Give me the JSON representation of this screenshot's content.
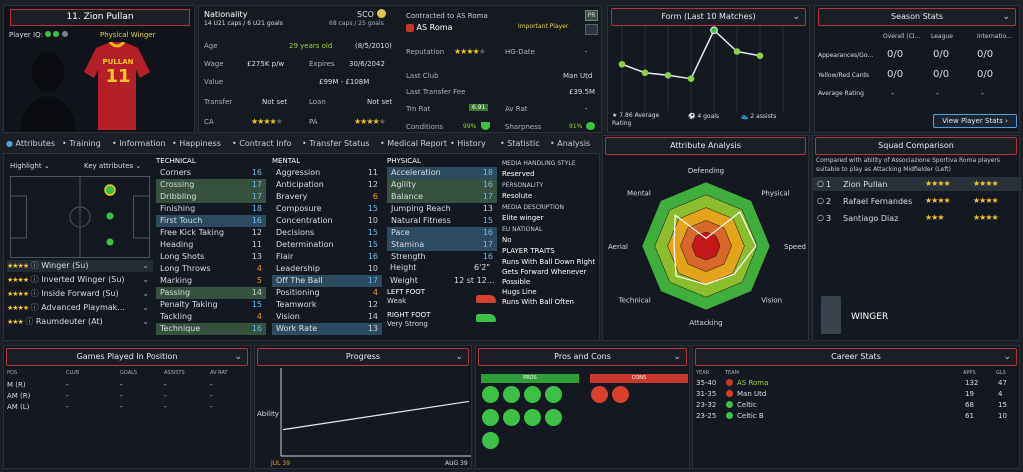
{
  "header": {
    "player_name": "11. Zion Pullan",
    "player_iq_label": "Player IQ:",
    "role": "Physical Winger",
    "shirt_name": "PULLAN",
    "shirt_number": "11"
  },
  "info": {
    "nationality_label": "Nationality",
    "nationality_code": "SCO",
    "u21": "14 U21 caps / 6 U21 goals",
    "caps": "68 caps / 25 goals",
    "contract_label": "Contracted to AS Roma",
    "club": "AS Roma",
    "status": "Important Player",
    "pr_badge": "PR",
    "age_label": "Age",
    "age_value": "29 years old",
    "dob": "(8/5/2010)",
    "wage_label": "Wage",
    "wage_value": "£275K p/w",
    "expires_label": "Expires",
    "expires_value": "30/6/2042",
    "value_label": "Value",
    "value_value": "£99M - £108M",
    "transfer_label": "Transfer",
    "transfer_value": "Not set",
    "loan_label": "Loan",
    "loan_value": "Not set",
    "ca_label": "CA",
    "pa_label": "PA",
    "reputation_label": "Reputation",
    "hg_label": "HG-Date",
    "hg_value": "-",
    "last_club_label": "Last Club",
    "last_club_value": "Man Utd",
    "last_fee_label": "Last Transfer Fee",
    "last_fee_value": "£39.5M",
    "trn_rat_label": "Trn Rat",
    "trn_rat_value": "6.91",
    "av_rat_label": "Av Rat",
    "av_rat_value": "-",
    "conditions_label": "Conditions",
    "conditions_value": "99%",
    "sharpness_label": "Sharpness",
    "sharpness_value": "91%"
  },
  "form": {
    "title": "Form (Last 10 Matches)",
    "avg": "7.86 Average Rating",
    "goals": "4 goals",
    "assists": "2 assists",
    "points": [
      0.55,
      0.45,
      0.42,
      0.38,
      0.95,
      0.7,
      0.65
    ]
  },
  "season": {
    "title": "Season Stats",
    "cols": [
      "Overall (Cl...",
      "League",
      "Internatio..."
    ],
    "rows": [
      {
        "label": "Appearances/Go...",
        "values": [
          "0/0",
          "0/0",
          "0/0"
        ]
      },
      {
        "label": "Yellow/Red Cards",
        "values": [
          "0/0",
          "0/0",
          "0/0"
        ]
      },
      {
        "label": "Average Rating",
        "values": [
          "-",
          "-",
          "-"
        ]
      }
    ],
    "button": "View Player Stats"
  },
  "tabs": [
    "Attributes",
    "Training",
    "Information",
    "Happiness",
    "Contract Info",
    "Transfer Status",
    "Medical Report",
    "History",
    "Statistic",
    "Analysis"
  ],
  "pitch": {
    "highlight": "Highlight",
    "key_attributes": "Key attributes",
    "roles": [
      {
        "name": "Winger (Su)",
        "stars": 4
      },
      {
        "name": "Inverted Winger (Su)",
        "stars": 4
      },
      {
        "name": "Inside Forward (Su)",
        "stars": 4
      },
      {
        "name": "Advanced Playmak...",
        "stars": 4
      },
      {
        "name": "Raumdeuter (At)",
        "stars": 3
      }
    ]
  },
  "technical": {
    "title": "TECHNICAL",
    "items": [
      {
        "n": "Corners",
        "v": "16",
        "h": ""
      },
      {
        "n": "Crossing",
        "v": "17",
        "h": "g"
      },
      {
        "n": "Dribbling",
        "v": "17",
        "h": "g"
      },
      {
        "n": "Finishing",
        "v": "18",
        "h": ""
      },
      {
        "n": "First Touch",
        "v": "16",
        "h": "b"
      },
      {
        "n": "Free Kick Taking",
        "v": "12",
        "h": ""
      },
      {
        "n": "Heading",
        "v": "11",
        "h": ""
      },
      {
        "n": "Long Shots",
        "v": "13",
        "h": ""
      },
      {
        "n": "Long Throws",
        "v": "4",
        "h": ""
      },
      {
        "n": "Marking",
        "v": "5",
        "h": ""
      },
      {
        "n": "Passing",
        "v": "14",
        "h": "g"
      },
      {
        "n": "Penalty Taking",
        "v": "15",
        "h": ""
      },
      {
        "n": "Tackling",
        "v": "4",
        "h": ""
      },
      {
        "n": "Technique",
        "v": "16",
        "h": "g"
      }
    ]
  },
  "mental": {
    "title": "MENTAL",
    "items": [
      {
        "n": "Aggression",
        "v": "11",
        "h": ""
      },
      {
        "n": "Anticipation",
        "v": "12",
        "h": ""
      },
      {
        "n": "Bravery",
        "v": "6",
        "h": ""
      },
      {
        "n": "Composure",
        "v": "15",
        "h": ""
      },
      {
        "n": "Concentration",
        "v": "10",
        "h": ""
      },
      {
        "n": "Decisions",
        "v": "15",
        "h": ""
      },
      {
        "n": "Determination",
        "v": "15",
        "h": ""
      },
      {
        "n": "Flair",
        "v": "16",
        "h": ""
      },
      {
        "n": "Leadership",
        "v": "10",
        "h": ""
      },
      {
        "n": "Off The Ball",
        "v": "17",
        "h": "b"
      },
      {
        "n": "Positioning",
        "v": "4",
        "h": ""
      },
      {
        "n": "Teamwork",
        "v": "12",
        "h": ""
      },
      {
        "n": "Vision",
        "v": "14",
        "h": ""
      },
      {
        "n": "Work Rate",
        "v": "13",
        "h": "b"
      }
    ]
  },
  "physical": {
    "title": "PHYSICAL",
    "items": [
      {
        "n": "Acceleration",
        "v": "18",
        "h": "b"
      },
      {
        "n": "Agility",
        "v": "16",
        "h": "g"
      },
      {
        "n": "Balance",
        "v": "17",
        "h": "g"
      },
      {
        "n": "Jumping Reach",
        "v": "13",
        "h": ""
      },
      {
        "n": "Natural Fitness",
        "v": "15",
        "h": ""
      },
      {
        "n": "Pace",
        "v": "16",
        "h": "b"
      },
      {
        "n": "Stamina",
        "v": "17",
        "h": "b"
      },
      {
        "n": "Strength",
        "v": "16",
        "h": ""
      }
    ],
    "height_label": "Height",
    "height_value": "6'2\"",
    "weight_label": "Weight",
    "weight_value": "12 st 12...",
    "left_foot_label": "LEFT FOOT",
    "left_foot_value": "Weak",
    "right_foot_label": "RIGHT FOOT",
    "right_foot_value": "Very Strong"
  },
  "media": {
    "title": "MEDIA HANDLING STYLE",
    "style": "Reserved",
    "personality_label": "PERSONALITY",
    "personality": "Resolute",
    "description_label": "MEDIA DESCRIPTION",
    "description": "Elite winger",
    "eu_label": "EU NATIONAL",
    "eu": "No",
    "traits_label": "PLAYER TRAITS",
    "traits": [
      "Runs With Ball Down Right",
      "Gets Forward Whenever Possible",
      "Hugs Line",
      "Runs With Ball Often"
    ]
  },
  "analysis": {
    "title": "Attribute Analysis",
    "axes": [
      "Defending",
      "Physical",
      "Speed",
      "Vision",
      "Attacking",
      "Technical",
      "Aerial",
      "Mental"
    ],
    "values": [
      0.12,
      0.75,
      0.78,
      0.62,
      0.6,
      0.66,
      0.5,
      0.68
    ]
  },
  "squad": {
    "title": "Squad Comparison",
    "desc": "Compared with ability of Associazione Sportiva Roma players suitable to play as Attacking Midfielder (Left)",
    "players": [
      {
        "rank": "1",
        "name": "Zion Pullan",
        "a": 4,
        "b": 4
      },
      {
        "rank": "2",
        "name": "Rafael Fernandes",
        "a": 3.5,
        "b": 3.5
      },
      {
        "rank": "3",
        "name": "Santiago Diaz",
        "a": 2.5,
        "b": 3.5
      }
    ],
    "position": "WINGER"
  },
  "games": {
    "title": "Games Played In Position",
    "cols": [
      "POS",
      "CLUB",
      "GOALS",
      "ASSISTS",
      "AV RAT"
    ],
    "rows": [
      [
        "M (R)",
        "-",
        "-",
        "-",
        "-"
      ],
      [
        "AM (R)",
        "-",
        "-",
        "-",
        "-"
      ],
      [
        "AM (L)",
        "-",
        "-",
        "-",
        "-"
      ]
    ]
  },
  "progress": {
    "title": "Progress",
    "ylabel": "Ability",
    "x_start": "JUL 39",
    "x_end": "AUG 39",
    "line": [
      0.3,
      0.62
    ]
  },
  "proscons": {
    "title": "Pros and Cons",
    "pros": "PROS",
    "cons": "CONS",
    "pro_icons": [
      "finishing-icon",
      "boot-icon",
      "speed-icon",
      "stamina-icon",
      "cross-icon",
      "dribble-icon",
      "agility-icon",
      "strength-icon",
      "technique-icon"
    ],
    "con_icons": [
      "defending-icon",
      "tackle-icon"
    ]
  },
  "career": {
    "title": "Career Stats",
    "cols": [
      "YEAR",
      "TEAM",
      "APPS",
      "GLS"
    ],
    "rows": [
      {
        "year": "35-40",
        "team": "AS Roma",
        "apps": "132",
        "gls": "47",
        "hl": true
      },
      {
        "year": "31-35",
        "team": "Man Utd",
        "apps": "19",
        "gls": "4",
        "hl": false
      },
      {
        "year": "23-32",
        "team": "Celtic",
        "apps": "68",
        "gls": "15",
        "hl": false
      },
      {
        "year": "23-25",
        "team": "Celtic B",
        "apps": "61",
        "gls": "10",
        "hl": false
      }
    ]
  },
  "colors": {
    "accent": "#b3343a",
    "green": "#9ad43c",
    "star": "#f3c623",
    "blue": "#5aa0d8"
  }
}
